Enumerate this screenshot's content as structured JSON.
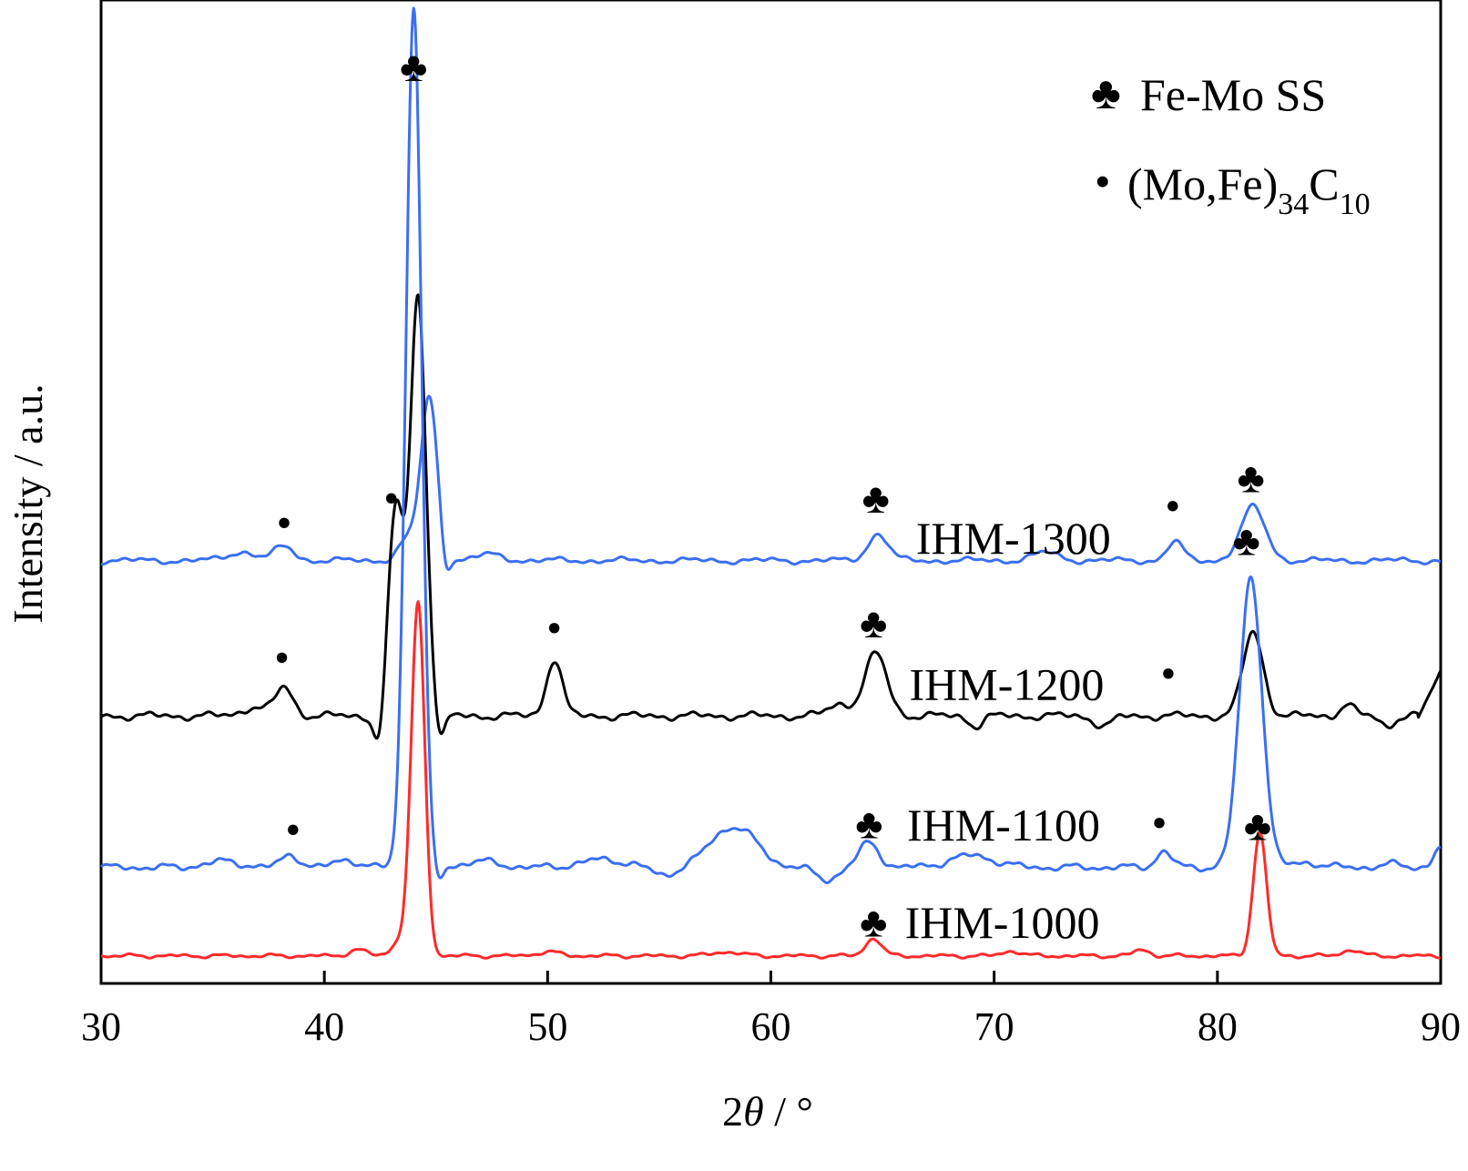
{
  "chart_data": {
    "type": "line",
    "title": "",
    "xlabel_prefix": "2",
    "xlabel_theta": "θ",
    "xlabel_suffix": " / °",
    "ylabel": "Intensity / a.u.",
    "xlim": [
      30,
      90
    ],
    "ylim": [
      0,
      100
    ],
    "xticks": [
      "30",
      "40",
      "50",
      "60",
      "70",
      "80",
      "90"
    ],
    "grid": false,
    "legend_position": "top-right",
    "legend": [
      {
        "symbol": "♣",
        "text": "Fe-Mo SS"
      },
      {
        "symbol": "•",
        "text_main": "(Mo,Fe)",
        "sub1": "34",
        "text_mid": "C",
        "sub2": "10"
      }
    ],
    "series": [
      {
        "name": "IHM-1300",
        "color": "#3b6ff2",
        "baseline": 43.0,
        "noise": 0.35,
        "peaks": [
          [
            36.3,
            0.6,
            0.9
          ],
          [
            38.2,
            0.45,
            1.4
          ],
          [
            43.7,
            0.4,
            2.0
          ],
          [
            44.7,
            0.38,
            16.5
          ],
          [
            45.4,
            0.2,
            -2.5
          ],
          [
            47.4,
            0.6,
            0.6
          ],
          [
            64.8,
            0.45,
            2.7
          ],
          [
            72.3,
            0.6,
            0.8
          ],
          [
            78.1,
            0.35,
            1.9
          ],
          [
            81.6,
            0.55,
            5.4
          ]
        ],
        "label": "IHM-1300",
        "label_x": 66.5,
        "label_y": 45.3,
        "markers": [
          {
            "x": 38.2,
            "y": 46.8,
            "symbol": "•"
          },
          {
            "x": 43.0,
            "y": 49.3,
            "symbol": "•"
          },
          {
            "x": 64.7,
            "y": 49.3,
            "symbol": "♣"
          },
          {
            "x": 78.0,
            "y": 48.5,
            "symbol": "•"
          },
          {
            "x": 81.5,
            "y": 51.4,
            "symbol": "♣"
          }
        ]
      },
      {
        "name": "IHM-1200",
        "color": "#000000",
        "baseline": 27.2,
        "noise": 0.45,
        "peaks": [
          [
            36.8,
            0.5,
            0.9
          ],
          [
            38.2,
            0.4,
            2.9
          ],
          [
            42.5,
            0.25,
            -3.8
          ],
          [
            43.2,
            0.35,
            21.0
          ],
          [
            44.2,
            0.35,
            42.5
          ],
          [
            45.2,
            0.2,
            -2.5
          ],
          [
            50.3,
            0.35,
            5.8
          ],
          [
            63.1,
            0.5,
            1.2
          ],
          [
            64.7,
            0.5,
            6.3
          ],
          [
            69.2,
            0.3,
            -1.0
          ],
          [
            74.9,
            0.4,
            -1.0
          ],
          [
            81.6,
            0.45,
            8.5
          ],
          [
            85.8,
            0.3,
            1.2
          ],
          [
            87.6,
            0.3,
            -1.0
          ]
        ],
        "endpoints": [
          89.0,
          27.0,
          90.0,
          31.8
        ],
        "label": "IHM-1200",
        "label_x": 66.2,
        "label_y": 30.4,
        "markers": [
          {
            "x": 38.1,
            "y": 33.1,
            "symbol": "•"
          },
          {
            "x": 50.3,
            "y": 36.1,
            "symbol": "•"
          },
          {
            "x": 64.6,
            "y": 36.6,
            "symbol": "♣"
          },
          {
            "x": 77.8,
            "y": 31.5,
            "symbol": "•"
          },
          {
            "x": 81.3,
            "y": 45.0,
            "symbol": "♣"
          }
        ]
      },
      {
        "name": "IHM-1100",
        "color": "#3b6ff2",
        "baseline": 11.8,
        "noise": 0.4,
        "peaks": [
          [
            35.5,
            0.8,
            0.6
          ],
          [
            38.5,
            0.4,
            1.3
          ],
          [
            41.0,
            0.5,
            0.8
          ],
          [
            43.7,
            0.2,
            -1.0
          ],
          [
            44.0,
            0.35,
            88.0
          ],
          [
            45.1,
            0.2,
            -1.5
          ],
          [
            47.0,
            0.8,
            0.6
          ],
          [
            52.5,
            1.0,
            0.8
          ],
          [
            55.2,
            0.5,
            -0.8
          ],
          [
            57.8,
            0.8,
            2.7
          ],
          [
            58.9,
            0.8,
            2.5
          ],
          [
            62.5,
            0.5,
            -1.2
          ],
          [
            64.4,
            0.45,
            2.5
          ],
          [
            69.0,
            1.0,
            1.2
          ],
          [
            77.6,
            0.35,
            1.6
          ],
          [
            81.5,
            0.5,
            29.5
          ],
          [
            84.0,
            0.6,
            0.5
          ],
          [
            87.8,
            0.5,
            0.3
          ],
          [
            90.0,
            0.3,
            2.0
          ]
        ],
        "label": "IHM-1100",
        "label_x": 66.1,
        "label_y": 16.1,
        "markers": [
          {
            "x": 38.6,
            "y": 15.6,
            "symbol": "•"
          },
          {
            "x": 64.4,
            "y": 16.2,
            "symbol": "♣"
          },
          {
            "x": 77.4,
            "y": 16.3,
            "symbol": "•"
          }
        ]
      },
      {
        "name": "IHM-1000",
        "color": "#ff2a2a",
        "baseline": 2.8,
        "noise": 0.22,
        "peaks": [
          [
            41.5,
            0.4,
            0.6
          ],
          [
            43.5,
            0.4,
            1.8
          ],
          [
            44.2,
            0.3,
            35.5
          ],
          [
            50.0,
            0.5,
            0.4
          ],
          [
            58.0,
            0.6,
            0.4
          ],
          [
            64.6,
            0.35,
            1.8
          ],
          [
            70.8,
            0.4,
            0.5
          ],
          [
            76.6,
            0.35,
            0.6
          ],
          [
            81.9,
            0.3,
            12.5
          ],
          [
            86.0,
            0.4,
            0.6
          ]
        ],
        "label": "IHM-1000",
        "label_x": 66.0,
        "label_y": 6.2,
        "markers": [
          {
            "x": 64.6,
            "y": 6.2,
            "symbol": "♣"
          },
          {
            "x": 81.8,
            "y": 16.0,
            "symbol": "♣"
          }
        ]
      }
    ],
    "top_marker": {
      "x": 44.0,
      "y": 93.2,
      "symbol": "♣"
    }
  }
}
